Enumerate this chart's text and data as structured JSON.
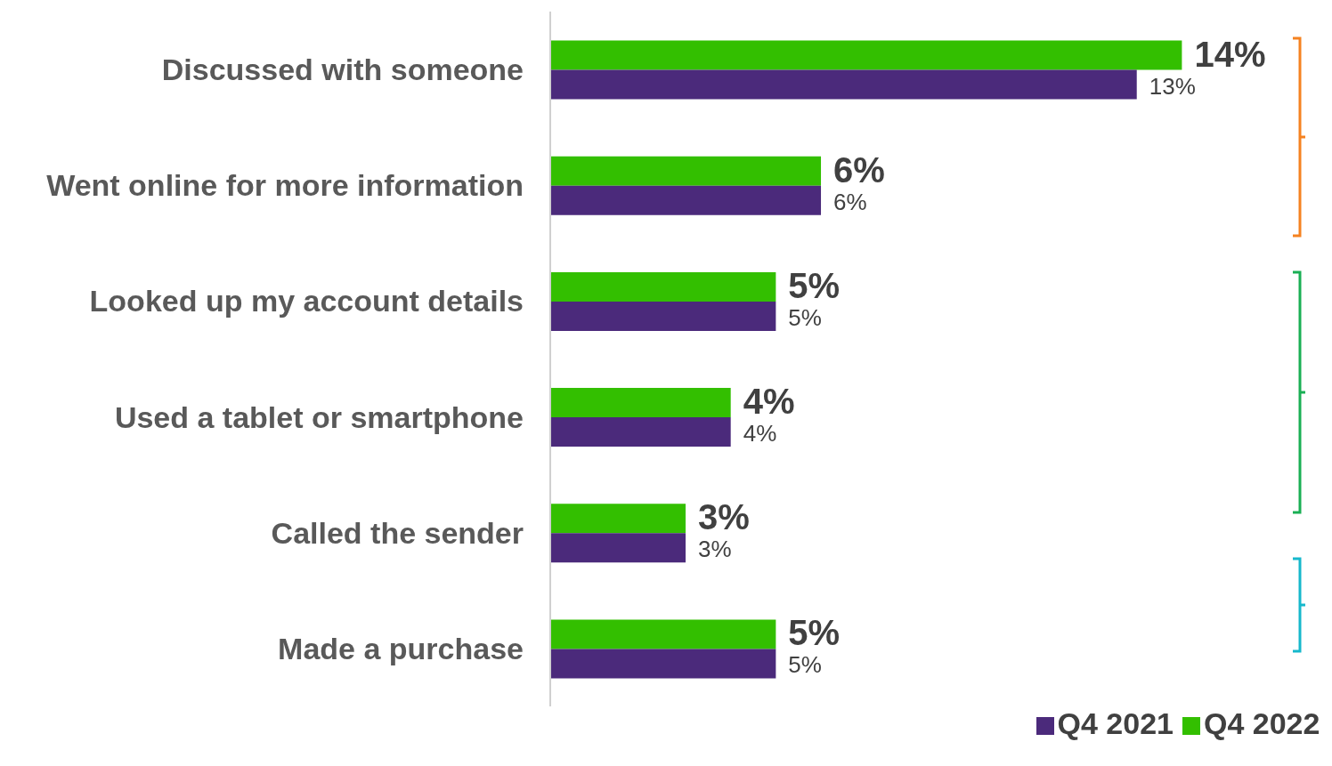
{
  "chart_data": {
    "type": "bar",
    "orientation": "horizontal",
    "categories": [
      "Discussed with someone",
      "Went online for more information",
      "Looked up my account details",
      "Used a tablet or smartphone",
      "Called the sender",
      "Made a purchase"
    ],
    "series": [
      {
        "name": "Q4 2022",
        "color": "#33bf00",
        "values": [
          14,
          6,
          5,
          4,
          3,
          5
        ],
        "value_labels": [
          "14%",
          "6%",
          "5%",
          "4%",
          "3%",
          "5%"
        ]
      },
      {
        "name": "Q4 2021",
        "color": "#4b2a7b",
        "values": [
          13,
          6,
          5,
          4,
          3,
          5
        ],
        "value_labels": [
          "13%",
          "6%",
          "5%",
          "4%",
          "3%",
          "5%"
        ]
      }
    ],
    "legend": "bottom",
    "grid": false
  }
}
